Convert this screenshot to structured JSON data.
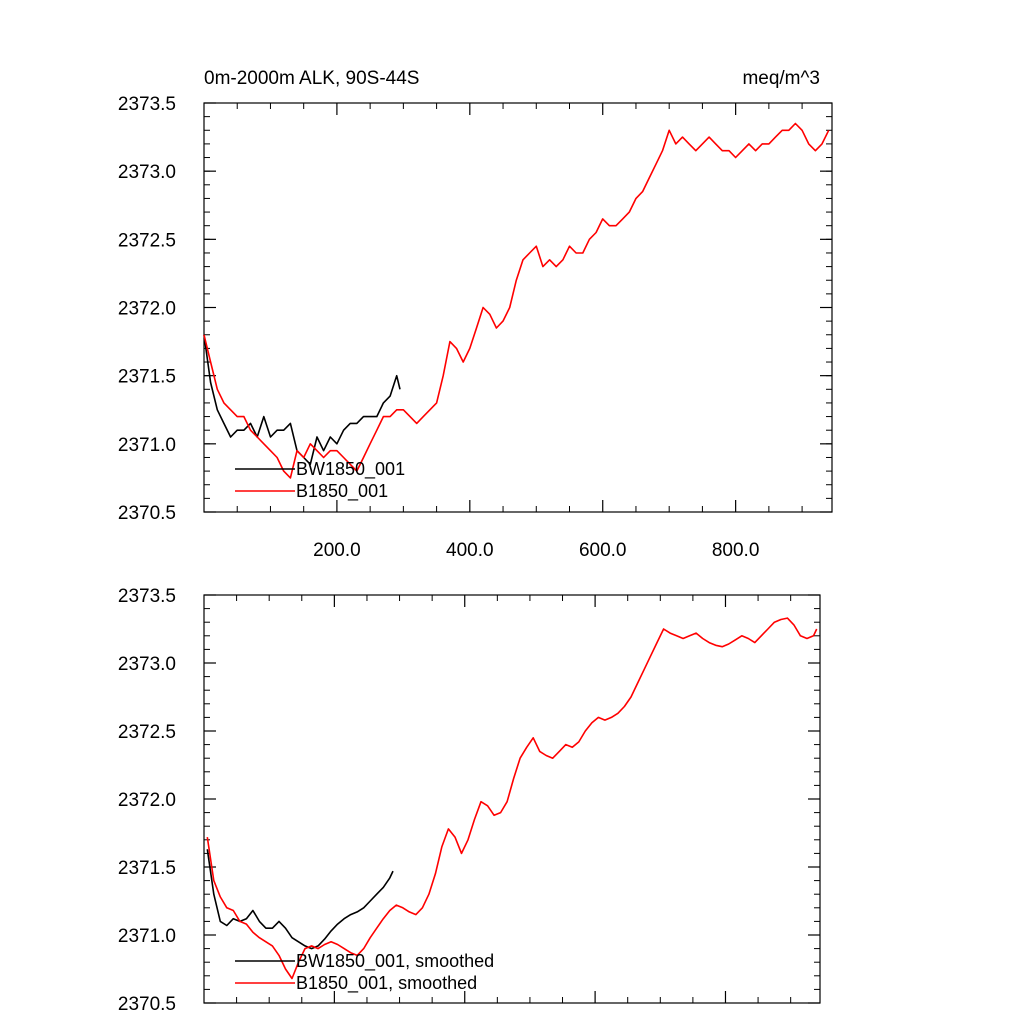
{
  "chart_data": [
    {
      "type": "line",
      "title_left": "0m-2000m ALK, 90S-44S",
      "title_right": "meq/m^3",
      "xlim": [
        0,
        945
      ],
      "ylim": [
        2370.5,
        2373.5
      ],
      "xticks": [
        200.0,
        400.0,
        600.0,
        800.0
      ],
      "xtick_labels": [
        "200.0",
        "400.0",
        "600.0",
        "800.0"
      ],
      "yticks": [
        2370.5,
        2371.0,
        2371.5,
        2372.0,
        2372.5,
        2373.0,
        2373.5
      ],
      "ytick_labels": [
        "2370.5",
        "2371.0",
        "2371.5",
        "2372.0",
        "2372.5",
        "2373.0",
        "2373.5"
      ],
      "legend_placement": "bottom-left",
      "series": [
        {
          "name": "BW1850_001",
          "color": "#000000",
          "x": [
            0,
            10,
            20,
            30,
            40,
            50,
            60,
            70,
            80,
            90,
            100,
            110,
            120,
            130,
            140,
            150,
            160,
            170,
            180,
            190,
            200,
            210,
            220,
            230,
            240,
            250,
            260,
            270,
            280,
            290,
            295
          ],
          "y": [
            2371.8,
            2371.45,
            2371.25,
            2371.15,
            2371.05,
            2371.1,
            2371.1,
            2371.15,
            2371.05,
            2371.2,
            2371.05,
            2371.1,
            2371.1,
            2371.15,
            2370.95,
            2370.9,
            2370.85,
            2371.05,
            2370.95,
            2371.05,
            2371.0,
            2371.1,
            2371.15,
            2371.15,
            2371.2,
            2371.2,
            2371.2,
            2371.3,
            2371.35,
            2371.5,
            2371.4
          ]
        },
        {
          "name": "B1850_001",
          "color": "#ff0000",
          "x": [
            0,
            10,
            20,
            30,
            40,
            50,
            60,
            70,
            80,
            90,
            100,
            110,
            120,
            130,
            140,
            150,
            160,
            170,
            180,
            190,
            200,
            210,
            220,
            230,
            240,
            250,
            260,
            270,
            280,
            290,
            300,
            310,
            320,
            330,
            340,
            350,
            360,
            370,
            380,
            390,
            400,
            410,
            420,
            430,
            440,
            450,
            460,
            470,
            480,
            490,
            500,
            510,
            520,
            530,
            540,
            550,
            560,
            570,
            580,
            590,
            600,
            610,
            620,
            630,
            640,
            650,
            660,
            670,
            680,
            690,
            700,
            710,
            720,
            730,
            740,
            750,
            760,
            770,
            780,
            790,
            800,
            810,
            820,
            830,
            840,
            850,
            860,
            870,
            880,
            890,
            900,
            910,
            920,
            930,
            940
          ],
          "y": [
            2371.8,
            2371.6,
            2371.4,
            2371.3,
            2371.25,
            2371.2,
            2371.2,
            2371.1,
            2371.05,
            2371.0,
            2370.95,
            2370.9,
            2370.8,
            2370.75,
            2370.95,
            2370.9,
            2371.0,
            2370.95,
            2370.9,
            2370.95,
            2370.95,
            2370.9,
            2370.85,
            2370.8,
            2370.9,
            2371.0,
            2371.1,
            2371.2,
            2371.2,
            2371.25,
            2371.25,
            2371.2,
            2371.15,
            2371.2,
            2371.25,
            2371.3,
            2371.5,
            2371.75,
            2371.7,
            2371.6,
            2371.7,
            2371.85,
            2372.0,
            2371.95,
            2371.85,
            2371.9,
            2372.0,
            2372.2,
            2372.35,
            2372.4,
            2372.45,
            2372.3,
            2372.35,
            2372.3,
            2372.35,
            2372.45,
            2372.4,
            2372.4,
            2372.5,
            2372.55,
            2372.65,
            2372.6,
            2372.6,
            2372.65,
            2372.7,
            2372.8,
            2372.85,
            2372.95,
            2373.05,
            2373.15,
            2373.3,
            2373.2,
            2373.25,
            2373.2,
            2373.15,
            2373.2,
            2373.25,
            2373.2,
            2373.15,
            2373.15,
            2373.1,
            2373.15,
            2373.2,
            2373.15,
            2373.2,
            2373.2,
            2373.25,
            2373.3,
            2373.3,
            2373.35,
            2373.3,
            2373.2,
            2373.15,
            2373.2,
            2373.3
          ]
        }
      ]
    },
    {
      "type": "line",
      "xlim": [
        0,
        945
      ],
      "ylim": [
        2370.5,
        2373.5
      ],
      "xticks": [
        200.0,
        400.0,
        600.0,
        800.0
      ],
      "yticks": [
        2370.5,
        2371.0,
        2371.5,
        2372.0,
        2372.5,
        2373.0,
        2373.5
      ],
      "ytick_labels": [
        "2370.5",
        "2371.0",
        "2371.5",
        "2372.0",
        "2372.5",
        "2373.0",
        "2373.5"
      ],
      "legend_placement": "bottom-left",
      "series": [
        {
          "name": "BW1850_001, smoothed",
          "color": "#000000",
          "x": [
            5,
            15,
            25,
            35,
            45,
            55,
            65,
            75,
            85,
            95,
            105,
            115,
            125,
            135,
            145,
            155,
            165,
            175,
            185,
            195,
            205,
            215,
            225,
            235,
            245,
            255,
            265,
            275,
            285,
            290
          ],
          "y": [
            2371.63,
            2371.3,
            2371.1,
            2371.07,
            2371.12,
            2371.1,
            2371.12,
            2371.18,
            2371.1,
            2371.05,
            2371.05,
            2371.1,
            2371.05,
            2370.98,
            2370.95,
            2370.92,
            2370.9,
            2370.92,
            2370.97,
            2371.03,
            2371.08,
            2371.12,
            2371.15,
            2371.17,
            2371.2,
            2371.25,
            2371.3,
            2371.35,
            2371.42,
            2371.47
          ]
        },
        {
          "name": "B1850_001, smoothed",
          "color": "#ff0000",
          "x": [
            5,
            15,
            25,
            35,
            45,
            55,
            65,
            75,
            85,
            95,
            105,
            115,
            125,
            135,
            145,
            155,
            165,
            175,
            185,
            195,
            205,
            215,
            225,
            235,
            245,
            255,
            265,
            275,
            285,
            295,
            305,
            315,
            325,
            335,
            345,
            355,
            365,
            375,
            385,
            395,
            405,
            415,
            425,
            435,
            445,
            455,
            465,
            475,
            485,
            495,
            505,
            515,
            525,
            535,
            545,
            555,
            565,
            575,
            585,
            595,
            605,
            615,
            625,
            635,
            645,
            655,
            665,
            675,
            685,
            695,
            705,
            715,
            725,
            735,
            745,
            755,
            765,
            775,
            785,
            795,
            805,
            815,
            825,
            835,
            845,
            855,
            865,
            875,
            885,
            895,
            905,
            915,
            925,
            935,
            940
          ],
          "y": [
            2371.72,
            2371.4,
            2371.28,
            2371.2,
            2371.18,
            2371.1,
            2371.08,
            2371.02,
            2370.98,
            2370.95,
            2370.92,
            2370.85,
            2370.75,
            2370.68,
            2370.8,
            2370.9,
            2370.92,
            2370.9,
            2370.93,
            2370.95,
            2370.93,
            2370.9,
            2370.87,
            2370.85,
            2370.9,
            2370.98,
            2371.05,
            2371.12,
            2371.18,
            2371.22,
            2371.2,
            2371.17,
            2371.15,
            2371.2,
            2371.3,
            2371.45,
            2371.65,
            2371.78,
            2371.72,
            2371.6,
            2371.7,
            2371.85,
            2371.98,
            2371.95,
            2371.88,
            2371.9,
            2371.98,
            2372.15,
            2372.3,
            2372.38,
            2372.45,
            2372.35,
            2372.32,
            2372.3,
            2372.35,
            2372.4,
            2372.38,
            2372.42,
            2372.5,
            2372.56,
            2372.6,
            2372.58,
            2372.6,
            2372.63,
            2372.68,
            2372.75,
            2372.85,
            2372.95,
            2373.05,
            2373.15,
            2373.25,
            2373.22,
            2373.2,
            2373.18,
            2373.2,
            2373.22,
            2373.18,
            2373.15,
            2373.13,
            2373.12,
            2373.14,
            2373.17,
            2373.2,
            2373.18,
            2373.15,
            2373.2,
            2373.25,
            2373.3,
            2373.32,
            2373.33,
            2373.28,
            2373.2,
            2373.18,
            2373.2,
            2373.25
          ]
        }
      ]
    }
  ]
}
